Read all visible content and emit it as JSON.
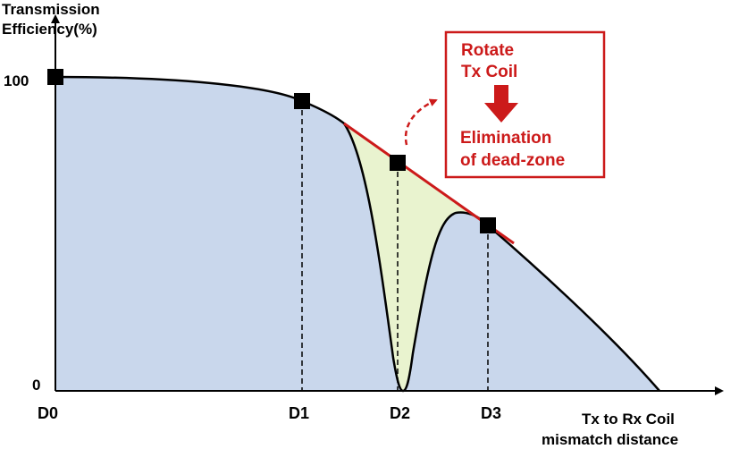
{
  "diagram": {
    "y_axis_title": [
      "Transmission",
      "Efficiency(%)"
    ],
    "y_tick_top": "100",
    "y_tick_bottom": "0",
    "x_axis_title": [
      "Tx to Rx Coil",
      "mismatch distance"
    ],
    "x_ticks": [
      "D0",
      "D1",
      "D2",
      "D3"
    ],
    "callout": {
      "line1": "Rotate",
      "line2": "Tx Coil",
      "line3": "Elimination",
      "line4": "of dead-zone"
    },
    "colors": {
      "area_fill": "#c9d7ec",
      "deadzone_fill": "#e9f3cf",
      "improved_line": "#cc1a1a",
      "callout_text": "#cc1a1a",
      "axis": "#000000"
    }
  }
}
